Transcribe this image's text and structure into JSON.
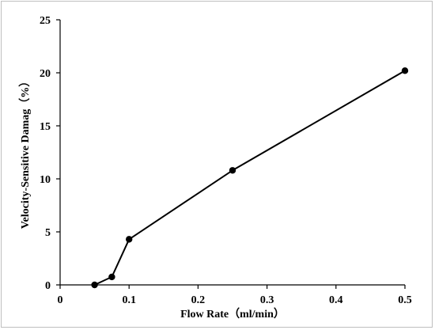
{
  "chart_data": {
    "type": "line",
    "title": "",
    "xlabel": "Flow Rate（ml/min）",
    "ylabel": "Velocity-Sensitive Damag（%）",
    "xlim": [
      0,
      0.5
    ],
    "ylim": [
      0,
      25
    ],
    "xticks": [
      "0",
      "0.1",
      "0.2",
      "0.3",
      "0.4",
      "0.5"
    ],
    "yticks": [
      "0",
      "5",
      "10",
      "15",
      "20",
      "25"
    ],
    "grid": false,
    "legend": "none",
    "series": [
      {
        "x": [
          0.05,
          0.075,
          0.1,
          0.25,
          0.5
        ],
        "y": [
          0,
          0.75,
          4.3,
          10.8,
          20.2
        ],
        "color": "#000000",
        "marker": "circle"
      }
    ]
  }
}
